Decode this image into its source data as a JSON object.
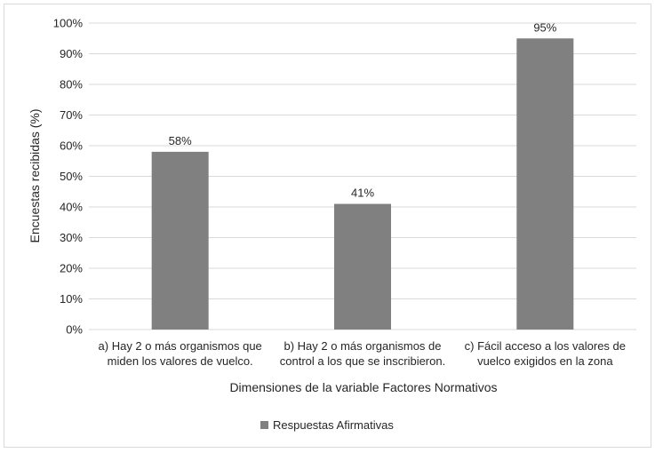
{
  "chart_data": {
    "type": "bar",
    "title": "",
    "xlabel": "Dimensiones de la variable Factores Normativos",
    "ylabel": "Encuestas recibidas (%)",
    "categories": [
      [
        "a) Hay 2 o más organismos que",
        "miden los valores de vuelco."
      ],
      [
        "b) Hay 2 o más organismos de",
        "control a los que se inscribieron."
      ],
      [
        "c) Fácil acceso a los valores de",
        "vuelco exigidos en la zona"
      ]
    ],
    "series": [
      {
        "name": "Respuestas Afirmativas",
        "values": [
          58,
          41,
          95
        ],
        "data_labels": [
          "58%",
          "41%",
          "95%"
        ],
        "color": "#808080"
      }
    ],
    "ylim": [
      0,
      100
    ],
    "yticks": [
      0,
      10,
      20,
      30,
      40,
      50,
      60,
      70,
      80,
      90,
      100
    ],
    "ytick_labels": [
      "0%",
      "10%",
      "20%",
      "30%",
      "40%",
      "50%",
      "60%",
      "70%",
      "80%",
      "90%",
      "100%"
    ],
    "grid": true,
    "gridline_color": "#d9d9d9",
    "legend_position": "bottom"
  }
}
